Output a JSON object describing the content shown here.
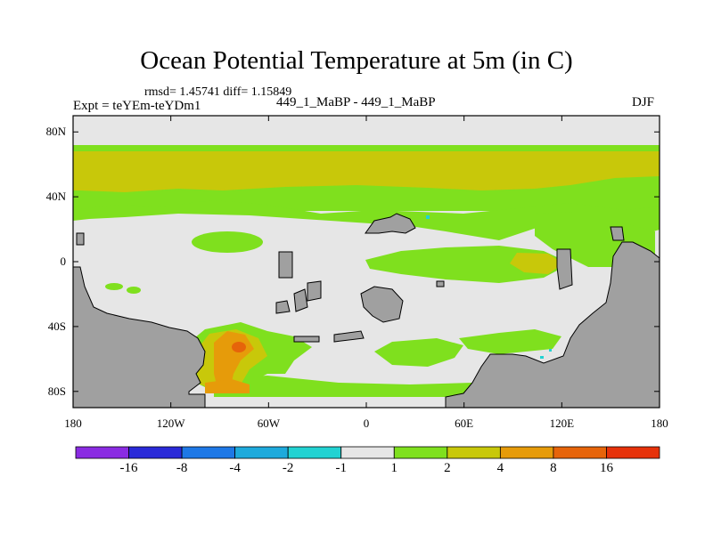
{
  "title": "Ocean Potential Temperature at 5m (in C)",
  "stats": "rmsd= 1.45741 diff= 1.15849",
  "experiment": "Expt = teYEm-teYDm1",
  "runs": "449_1_MaBP - 449_1_MaBP",
  "season": "DJF",
  "y_axis": {
    "ticks": [
      {
        "label": "80N",
        "lat": 80
      },
      {
        "label": "40N",
        "lat": 40
      },
      {
        "label": "0",
        "lat": 0
      },
      {
        "label": "40S",
        "lat": -40
      },
      {
        "label": "80S",
        "lat": -80
      }
    ]
  },
  "x_axis": {
    "ticks": [
      {
        "label": "180",
        "lon": -180
      },
      {
        "label": "120W",
        "lon": -120
      },
      {
        "label": "60W",
        "lon": -60
      },
      {
        "label": "0",
        "lon": 0
      },
      {
        "label": "60E",
        "lon": 60
      },
      {
        "label": "120E",
        "lon": 120
      },
      {
        "label": "180",
        "lon": 180
      }
    ]
  },
  "colorbar": {
    "colors": [
      "#8a2be2",
      "#2a2ad8",
      "#1e78e6",
      "#1eaadc",
      "#22d2d2",
      "#e6e6e6",
      "#7fe01e",
      "#c8c80a",
      "#e69b0a",
      "#e6640a",
      "#e6320a"
    ],
    "labels": [
      "-16",
      "-8",
      "-4",
      "-2",
      "-1",
      "1",
      "2",
      "4",
      "8",
      "16"
    ]
  },
  "colors": {
    "land": "#a0a0a0",
    "neutral": "#e6e6e6",
    "green": "#7fe01e",
    "yellow": "#c8c80a",
    "orange": "#e69b0a",
    "dark_orange": "#e6640a",
    "cyan": "#22d2d2"
  }
}
